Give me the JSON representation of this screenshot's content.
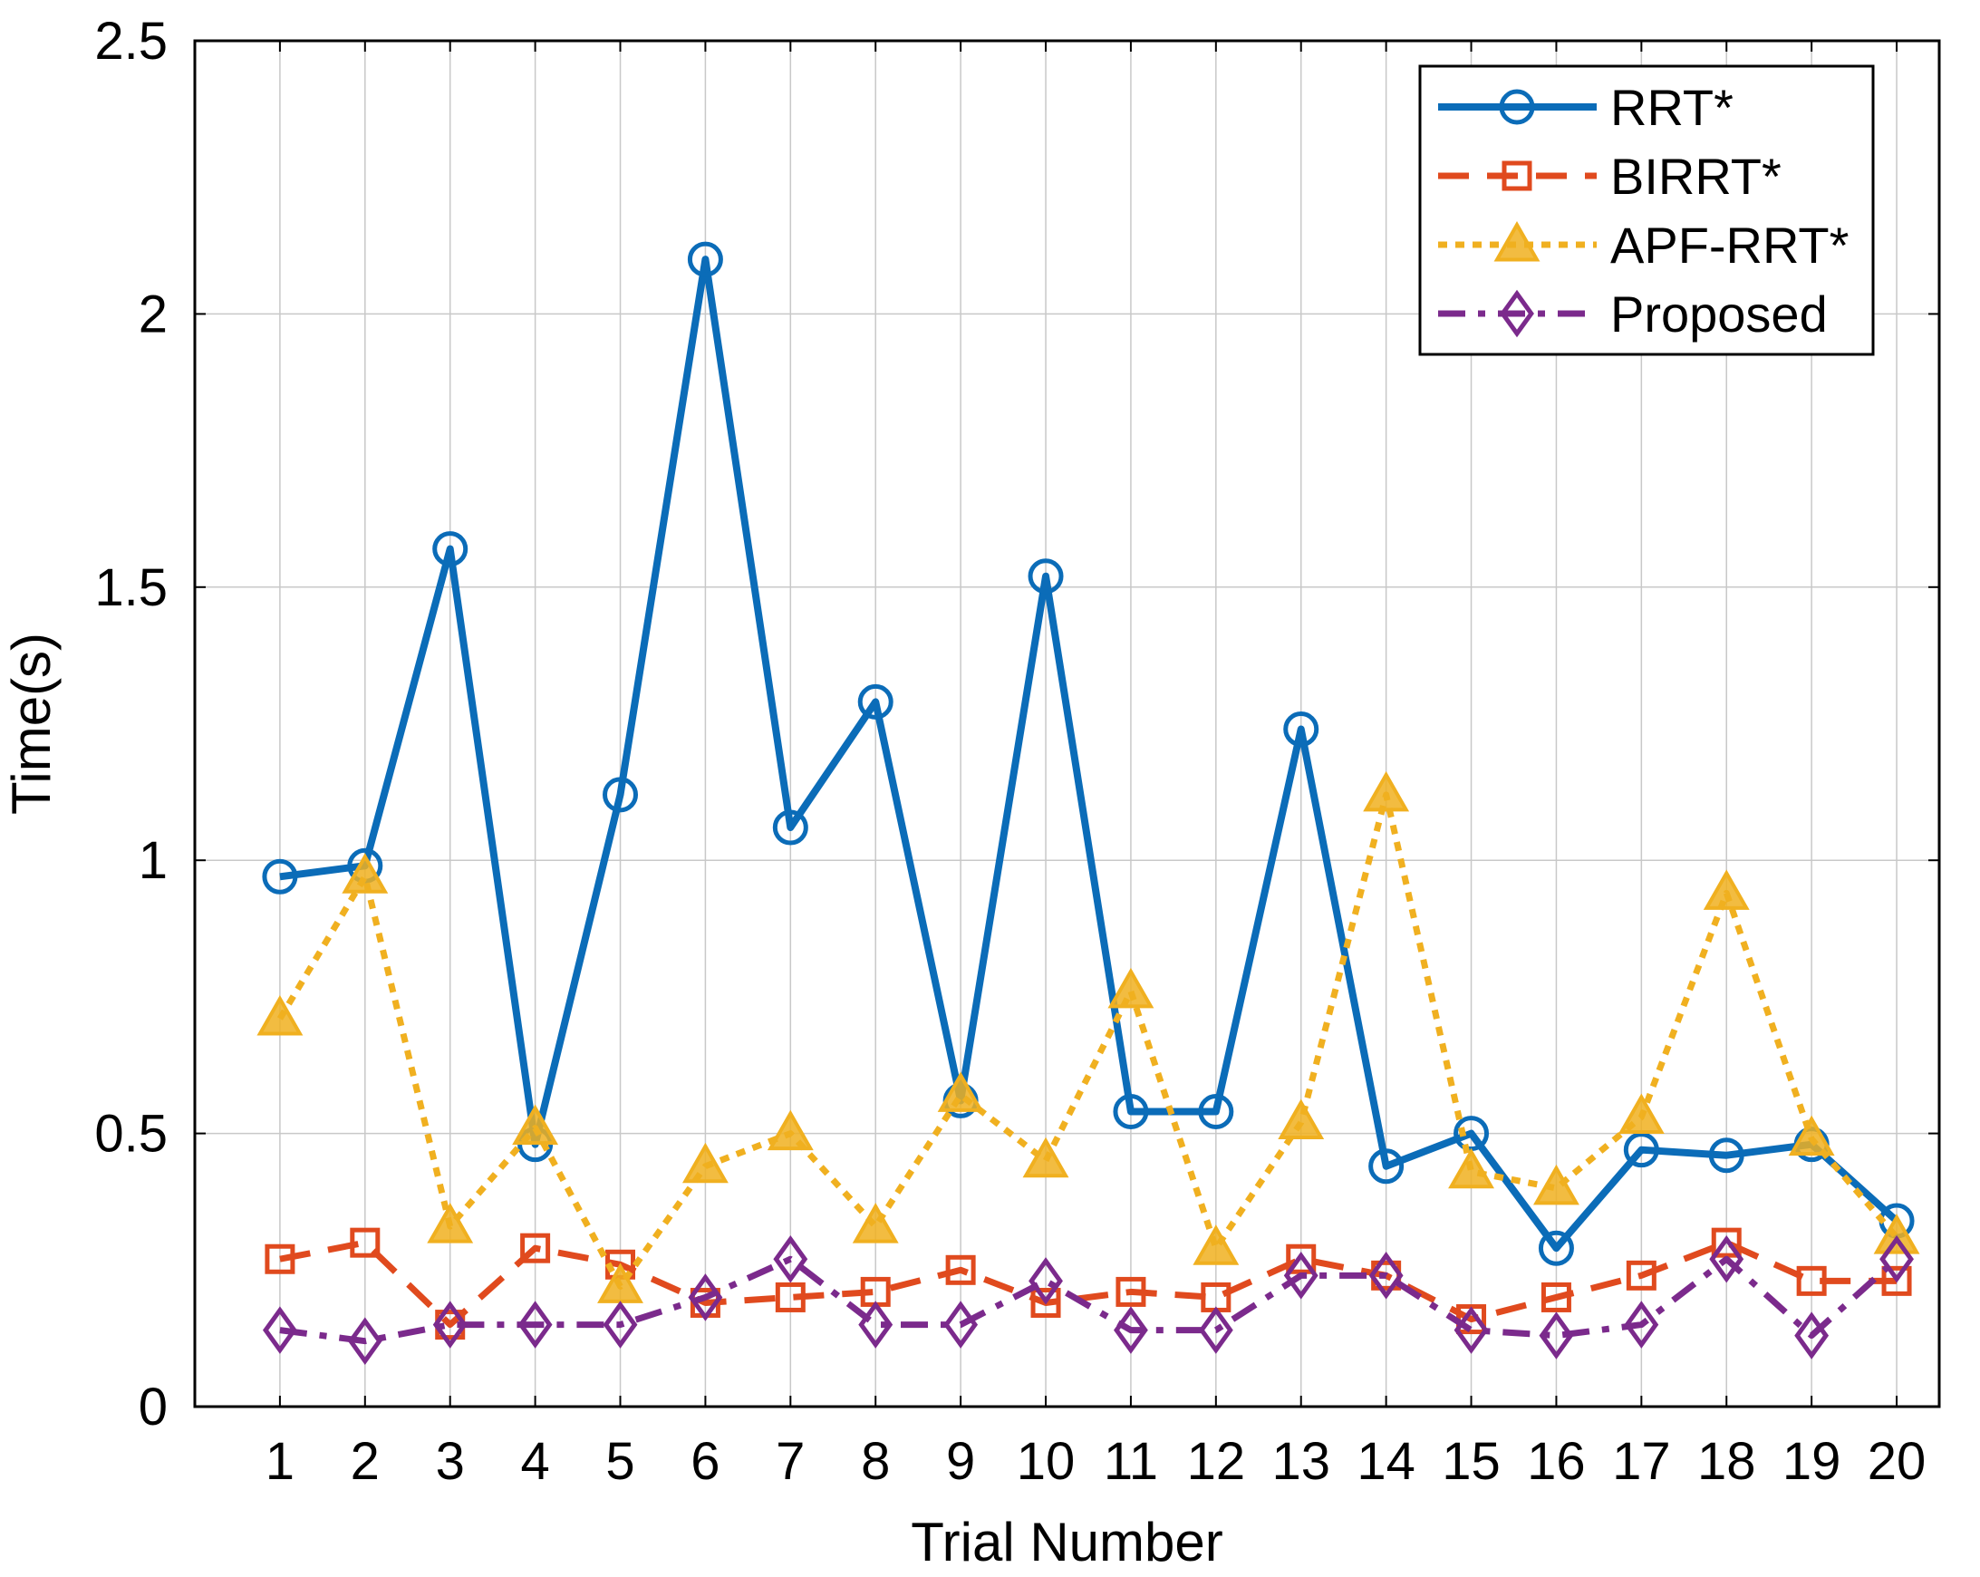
{
  "chart_data": {
    "type": "line",
    "title": "",
    "xlabel": "Trial Number",
    "ylabel": "Time(s)",
    "xlim": [
      0,
      20.5
    ],
    "ylim": [
      0,
      2.5
    ],
    "grid": true,
    "legend_position": "top-right",
    "categories": [
      "1",
      "2",
      "3",
      "4",
      "5",
      "6",
      "7",
      "8",
      "9",
      "10",
      "11",
      "12",
      "13",
      "14",
      "15",
      "16",
      "17",
      "18",
      "19",
      "20"
    ],
    "yticks": [
      "0",
      "0.5",
      "1",
      "1.5",
      "2",
      "2.5"
    ],
    "series": [
      {
        "name": "RRT*",
        "color": "#0b6cb8",
        "marker": "circle",
        "dash": "solid",
        "values": [
          0.97,
          0.99,
          1.57,
          0.48,
          1.12,
          2.1,
          1.06,
          1.29,
          0.56,
          1.52,
          0.54,
          0.54,
          1.24,
          0.44,
          0.5,
          0.29,
          0.47,
          0.46,
          0.48,
          0.34
        ]
      },
      {
        "name": "BIRRT*",
        "color": "#e04a1e",
        "marker": "square",
        "dash": "dashed",
        "values": [
          0.27,
          0.3,
          0.15,
          0.29,
          0.26,
          0.19,
          0.2,
          0.21,
          0.25,
          0.19,
          0.21,
          0.2,
          0.27,
          0.24,
          0.16,
          0.2,
          0.24,
          0.3,
          0.23,
          0.23
        ]
      },
      {
        "name": "APF-RRT*",
        "color": "#f0b020",
        "marker": "triangle",
        "dash": "dotted",
        "values": [
          0.71,
          0.97,
          0.33,
          0.51,
          0.22,
          0.44,
          0.5,
          0.33,
          0.57,
          0.45,
          0.76,
          0.29,
          0.52,
          1.12,
          0.43,
          0.4,
          0.53,
          0.94,
          0.49,
          0.31
        ]
      },
      {
        "name": "Proposed",
        "color": "#7b2a8c",
        "marker": "diamond",
        "dash": "dashdot",
        "values": [
          0.14,
          0.12,
          0.15,
          0.15,
          0.15,
          0.2,
          0.27,
          0.15,
          0.15,
          0.23,
          0.14,
          0.14,
          0.24,
          0.24,
          0.14,
          0.13,
          0.15,
          0.27,
          0.13,
          0.27
        ]
      }
    ]
  }
}
